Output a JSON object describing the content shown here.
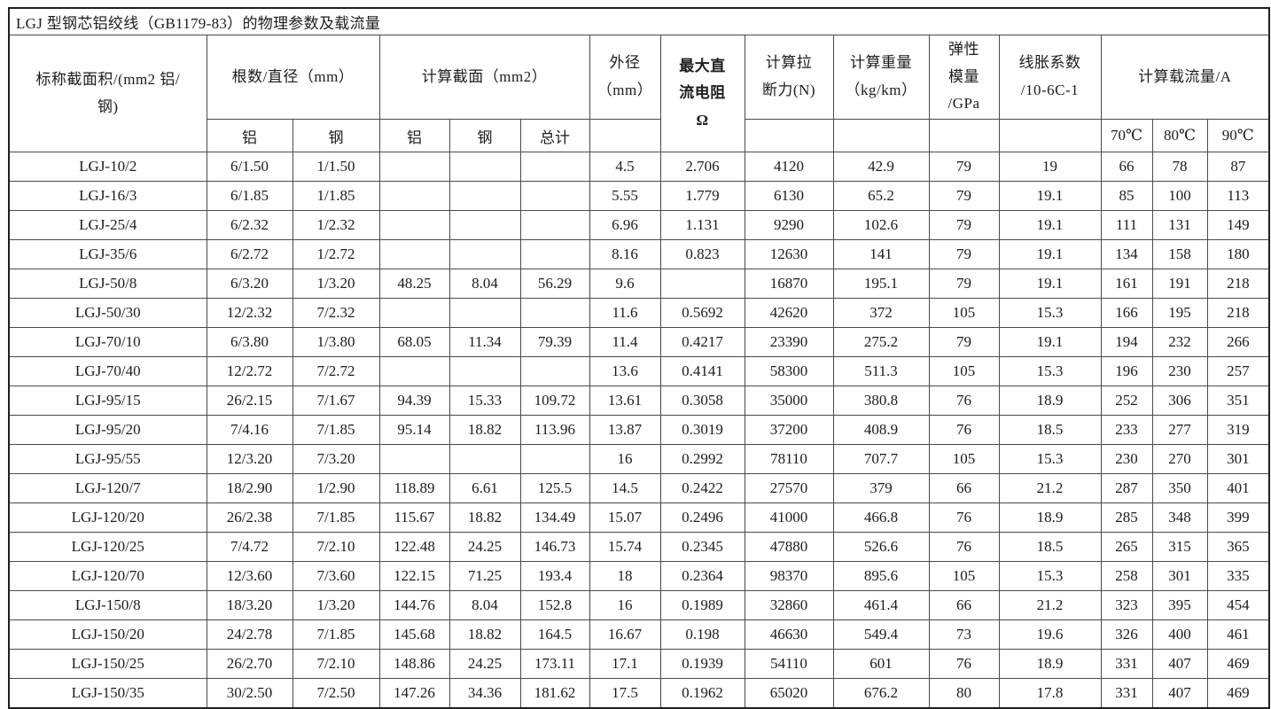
{
  "title": "LGJ 型钢芯铝绞线（GB1179-83）的物理参数及载流量",
  "table": {
    "columns": {
      "nominal_area": "标称截面积/(mm2 铝/\n钢)",
      "strands_diameter": "根数/直径（mm）",
      "calc_section": "计算截面（mm2）",
      "outer_diameter": "外径\n（mm）",
      "max_dc_resistance": "最大直\n流电阻\nΩ",
      "breaking_force": "计算拉\n断力(N)",
      "calc_weight": "计算重量\n（kg/km）",
      "elastic_modulus": "弹性\n模量\n/GPa",
      "expansion_coeff": "线胀系数\n/10-6C-1",
      "ampacity": "计算载流量/A",
      "sub": {
        "strands_al": "铝",
        "strands_steel": "钢",
        "section_al": "铝",
        "section_steel": "钢",
        "section_total": "总计",
        "temp_70": "70℃",
        "temp_80": "80℃",
        "temp_90": "90℃"
      }
    },
    "rows": [
      [
        "LGJ-10/2",
        "6/1.50",
        "1/1.50",
        "",
        "",
        "",
        "4.5",
        "2.706",
        "4120",
        "42.9",
        "79",
        "19",
        "66",
        "78",
        "87"
      ],
      [
        "LGJ-16/3",
        "6/1.85",
        "1/1.85",
        "",
        "",
        "",
        "5.55",
        "1.779",
        "6130",
        "65.2",
        "79",
        "19.1",
        "85",
        "100",
        "113"
      ],
      [
        "LGJ-25/4",
        "6/2.32",
        "1/2.32",
        "",
        "",
        "",
        "6.96",
        "1.131",
        "9290",
        "102.6",
        "79",
        "19.1",
        "111",
        "131",
        "149"
      ],
      [
        "LGJ-35/6",
        "6/2.72",
        "1/2.72",
        "",
        "",
        "",
        "8.16",
        "0.823",
        "12630",
        "141",
        "79",
        "19.1",
        "134",
        "158",
        "180"
      ],
      [
        "LGJ-50/8",
        "6/3.20",
        "1/3.20",
        "48.25",
        "8.04",
        "56.29",
        "9.6",
        "",
        "16870",
        "195.1",
        "79",
        "19.1",
        "161",
        "191",
        "218"
      ],
      [
        "LGJ-50/30",
        "12/2.32",
        "7/2.32",
        "",
        "",
        "",
        "11.6",
        "0.5692",
        "42620",
        "372",
        "105",
        "15.3",
        "166",
        "195",
        "218"
      ],
      [
        "LGJ-70/10",
        "6/3.80",
        "1/3.80",
        "68.05",
        "11.34",
        "79.39",
        "11.4",
        "0.4217",
        "23390",
        "275.2",
        "79",
        "19.1",
        "194",
        "232",
        "266"
      ],
      [
        "LGJ-70/40",
        "12/2.72",
        "7/2.72",
        "",
        "",
        "",
        "13.6",
        "0.4141",
        "58300",
        "511.3",
        "105",
        "15.3",
        "196",
        "230",
        "257"
      ],
      [
        "LGJ-95/15",
        "26/2.15",
        "7/1.67",
        "94.39",
        "15.33",
        "109.72",
        "13.61",
        "0.3058",
        "35000",
        "380.8",
        "76",
        "18.9",
        "252",
        "306",
        "351"
      ],
      [
        "LGJ-95/20",
        "7/4.16",
        "7/1.85",
        "95.14",
        "18.82",
        "113.96",
        "13.87",
        "0.3019",
        "37200",
        "408.9",
        "76",
        "18.5",
        "233",
        "277",
        "319"
      ],
      [
        "LGJ-95/55",
        "12/3.20",
        "7/3.20",
        "",
        "",
        "",
        "16",
        "0.2992",
        "78110",
        "707.7",
        "105",
        "15.3",
        "230",
        "270",
        "301"
      ],
      [
        "LGJ-120/7",
        "18/2.90",
        "1/2.90",
        "118.89",
        "6.61",
        "125.5",
        "14.5",
        "0.2422",
        "27570",
        "379",
        "66",
        "21.2",
        "287",
        "350",
        "401"
      ],
      [
        "LGJ-120/20",
        "26/2.38",
        "7/1.85",
        "115.67",
        "18.82",
        "134.49",
        "15.07",
        "0.2496",
        "41000",
        "466.8",
        "76",
        "18.9",
        "285",
        "348",
        "399"
      ],
      [
        "LGJ-120/25",
        "7/4.72",
        "7/2.10",
        "122.48",
        "24.25",
        "146.73",
        "15.74",
        "0.2345",
        "47880",
        "526.6",
        "76",
        "18.5",
        "265",
        "315",
        "365"
      ],
      [
        "LGJ-120/70",
        "12/3.60",
        "7/3.60",
        "122.15",
        "71.25",
        "193.4",
        "18",
        "0.2364",
        "98370",
        "895.6",
        "105",
        "15.3",
        "258",
        "301",
        "335"
      ],
      [
        "LGJ-150/8",
        "18/3.20",
        "1/3.20",
        "144.76",
        "8.04",
        "152.8",
        "16",
        "0.1989",
        "32860",
        "461.4",
        "66",
        "21.2",
        "323",
        "395",
        "454"
      ],
      [
        "LGJ-150/20",
        "24/2.78",
        "7/1.85",
        "145.68",
        "18.82",
        "164.5",
        "16.67",
        "0.198",
        "46630",
        "549.4",
        "73",
        "19.6",
        "326",
        "400",
        "461"
      ],
      [
        "LGJ-150/25",
        "26/2.70",
        "7/2.10",
        "148.86",
        "24.25",
        "173.11",
        "17.1",
        "0.1939",
        "54110",
        "601",
        "76",
        "18.9",
        "331",
        "407",
        "469"
      ],
      [
        "LGJ-150/35",
        "30/2.50",
        "7/2.50",
        "147.26",
        "34.36",
        "181.62",
        "17.5",
        "0.1962",
        "65020",
        "676.2",
        "80",
        "17.8",
        "331",
        "407",
        "469"
      ]
    ]
  }
}
